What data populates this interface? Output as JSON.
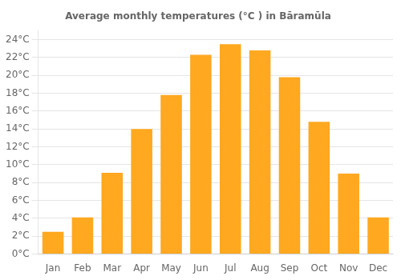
{
  "chart_data": {
    "type": "bar",
    "title": "Average monthly temperatures (°C ) in Bāramūla",
    "categories": [
      "Jan",
      "Feb",
      "Mar",
      "Apr",
      "May",
      "Jun",
      "Jul",
      "Aug",
      "Sep",
      "Oct",
      "Nov",
      "Dec"
    ],
    "values": [
      2.5,
      4.1,
      9.1,
      14.0,
      17.8,
      22.3,
      23.5,
      22.8,
      19.8,
      14.8,
      9.0,
      4.1
    ],
    "color": "#FFA820",
    "ylim": [
      0,
      25
    ],
    "yticks": [
      {
        "value": 0,
        "label": "0°C"
      },
      {
        "value": 2,
        "label": "2°C"
      },
      {
        "value": 4,
        "label": "4°C"
      },
      {
        "value": 6,
        "label": "6°C"
      },
      {
        "value": 8,
        "label": "8°C"
      },
      {
        "value": 10,
        "label": "10°C"
      },
      {
        "value": 12,
        "label": "12°C"
      },
      {
        "value": 14,
        "label": "14°C"
      },
      {
        "value": 16,
        "label": "16°C"
      },
      {
        "value": 18,
        "label": "18°C"
      },
      {
        "value": 20,
        "label": "20°C"
      },
      {
        "value": 22,
        "label": "22°C"
      },
      {
        "value": 24,
        "label": "24°C"
      }
    ],
    "grid": true
  }
}
